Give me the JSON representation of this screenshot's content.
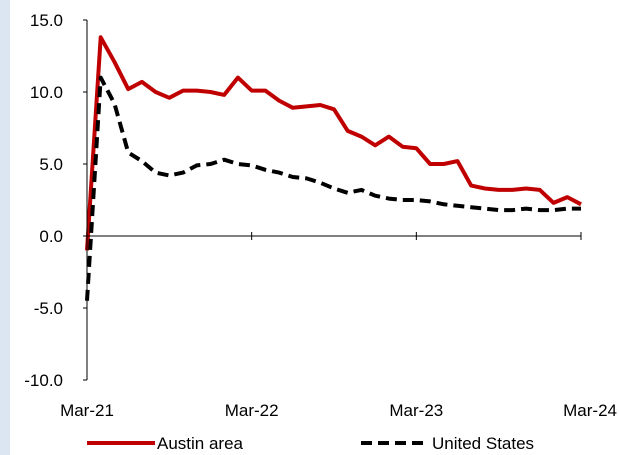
{
  "chart_data": {
    "type": "line",
    "title": "",
    "xlabel": "",
    "ylabel": "",
    "ylim": [
      -10,
      15
    ],
    "yticks": [
      15,
      10,
      5,
      0,
      -5,
      -10
    ],
    "ytick_labels": [
      "15.0",
      "10.0",
      "5.0",
      "0.0",
      "-5.0",
      "-10.0"
    ],
    "xlim": [
      "2021-03",
      "2024-03"
    ],
    "xticks": [
      "2021-03",
      "2022-03",
      "2023-03",
      "2024-03"
    ],
    "xtick_labels": [
      "Mar-21",
      "Mar-22",
      "Mar-23",
      "Mar-24"
    ],
    "grid": false,
    "legend": "bottom",
    "series": [
      {
        "name": "Austin area",
        "color": "#c00000",
        "style": "solid",
        "x": [
          "2021-03",
          "2021-04",
          "2021-05",
          "2021-06",
          "2021-07",
          "2021-08",
          "2021-09",
          "2021-10",
          "2021-11",
          "2021-12",
          "2022-01",
          "2022-02",
          "2022-03",
          "2022-04",
          "2022-05",
          "2022-06",
          "2022-07",
          "2022-08",
          "2022-09",
          "2022-10",
          "2022-11",
          "2022-12",
          "2023-01",
          "2023-02",
          "2023-03",
          "2023-04",
          "2023-05",
          "2023-06",
          "2023-07",
          "2023-08",
          "2023-09",
          "2023-10",
          "2023-11",
          "2023-12",
          "2024-01",
          "2024-02",
          "2024-03"
        ],
        "values": [
          -1.0,
          13.8,
          12.1,
          10.2,
          10.7,
          10.0,
          9.6,
          10.1,
          10.1,
          10.0,
          9.8,
          11.0,
          10.1,
          10.1,
          9.4,
          8.9,
          9.0,
          9.1,
          8.8,
          7.3,
          6.9,
          6.3,
          6.9,
          6.2,
          6.1,
          5.0,
          5.0,
          5.2,
          3.5,
          3.3,
          3.2,
          3.2,
          3.3,
          3.2,
          2.3,
          2.7,
          2.2
        ]
      },
      {
        "name": "United States",
        "color": "#000000",
        "style": "dashed",
        "x": [
          "2021-03",
          "2021-04",
          "2021-05",
          "2021-06",
          "2021-07",
          "2021-08",
          "2021-09",
          "2021-10",
          "2021-11",
          "2021-12",
          "2022-01",
          "2022-02",
          "2022-03",
          "2022-04",
          "2022-05",
          "2022-06",
          "2022-07",
          "2022-08",
          "2022-09",
          "2022-10",
          "2022-11",
          "2022-12",
          "2023-01",
          "2023-02",
          "2023-03",
          "2023-04",
          "2023-05",
          "2023-06",
          "2023-07",
          "2023-08",
          "2023-09",
          "2023-10",
          "2023-11",
          "2023-12",
          "2024-01",
          "2024-02",
          "2024-03"
        ],
        "values": [
          -4.5,
          11.0,
          9.2,
          5.8,
          5.2,
          4.4,
          4.2,
          4.4,
          4.9,
          5.0,
          5.3,
          5.0,
          4.9,
          4.6,
          4.4,
          4.1,
          4.0,
          3.7,
          3.3,
          3.0,
          3.2,
          2.8,
          2.6,
          2.5,
          2.5,
          2.4,
          2.2,
          2.1,
          2.0,
          1.9,
          1.8,
          1.8,
          1.9,
          1.8,
          1.8,
          1.9,
          1.9
        ]
      }
    ]
  }
}
